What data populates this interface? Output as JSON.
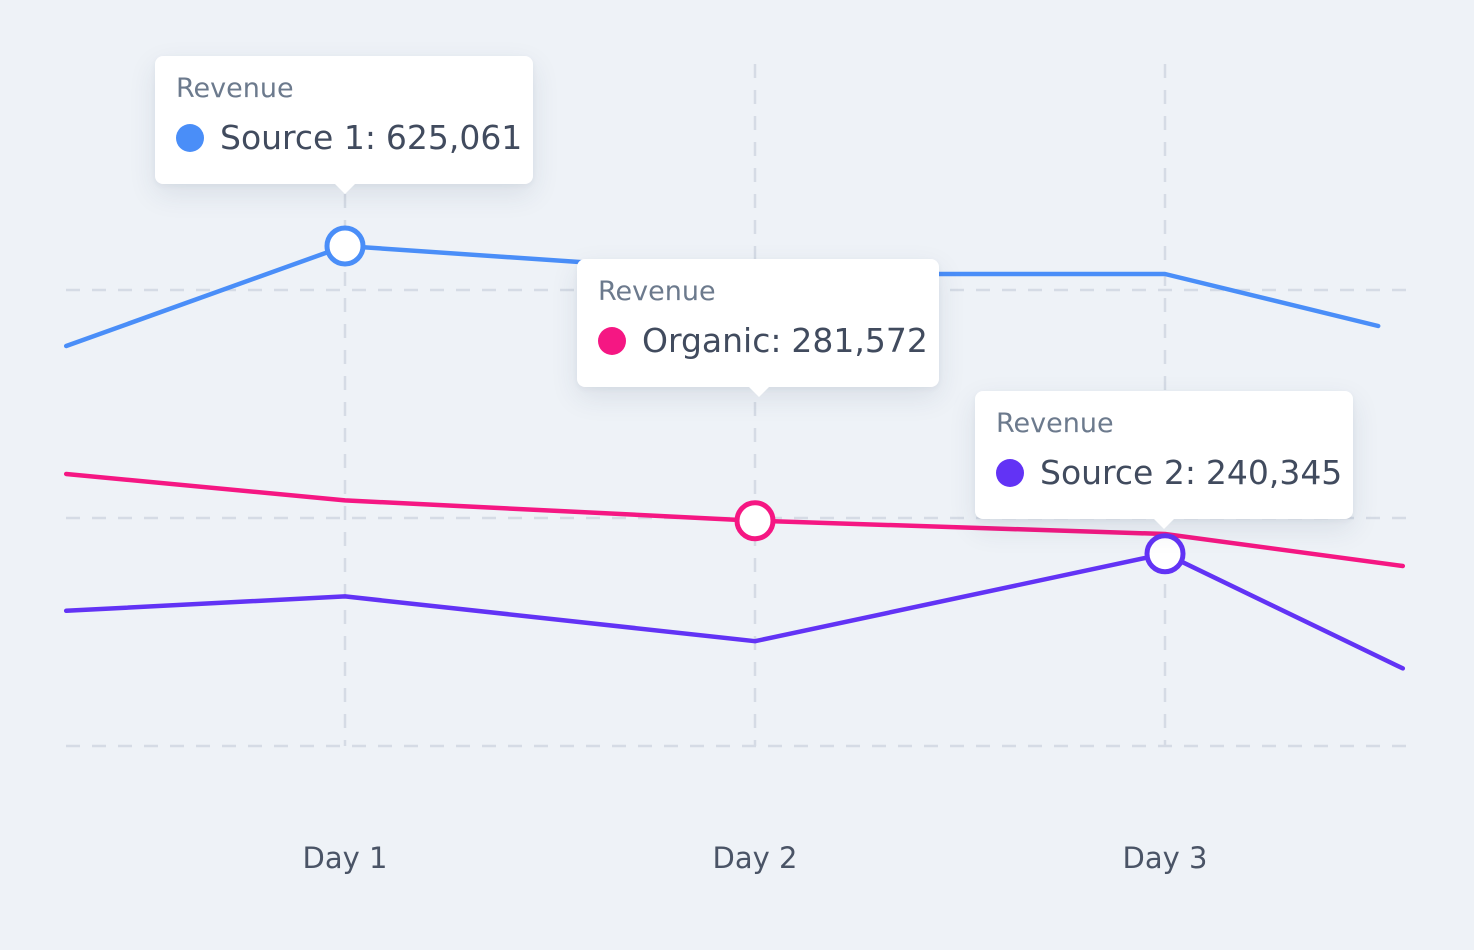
{
  "chart_data": {
    "type": "line",
    "title": "",
    "xlabel": "",
    "ylabel": "",
    "categories": [
      "Day 1",
      "Day 2",
      "Day 3"
    ],
    "x": [
      0.32,
      1.0,
      1.0,
      2.0,
      2.52
    ],
    "ylim": [
      0,
      840000
    ],
    "grid": true,
    "legend": "none",
    "series": [
      {
        "name": "Source 1",
        "color": "#4a8ef8",
        "x": [
          0.32,
          1.0,
          2.0,
          3.0,
          3.52
        ],
        "values": [
          500000,
          625061,
          590000,
          590000,
          525000
        ]
      },
      {
        "name": "Organic",
        "color": "#f51783",
        "x": [
          0.32,
          1.0,
          2.0,
          3.0,
          3.58
        ],
        "values": [
          340000,
          307000,
          281572,
          265000,
          225000
        ]
      },
      {
        "name": "Source 2",
        "color": "#6233f5",
        "x": [
          0.32,
          1.0,
          2.0,
          3.0,
          3.58
        ],
        "values": [
          169000,
          187000,
          131000,
          240345,
          97000
        ]
      }
    ],
    "tooltips": [
      {
        "title": "Revenue",
        "series": "Source 1",
        "label": "Source 1:",
        "value": "625,061",
        "color": "#4a8ef8",
        "x": 1.0
      },
      {
        "title": "Revenue",
        "series": "Organic",
        "label": "Organic:",
        "value": "281,572",
        "color": "#f51783",
        "x": 2.0
      },
      {
        "title": "Revenue",
        "series": "Source 2",
        "label": "Source 2:",
        "value": "240,345",
        "color": "#6233f5",
        "x": 3.0
      }
    ]
  }
}
